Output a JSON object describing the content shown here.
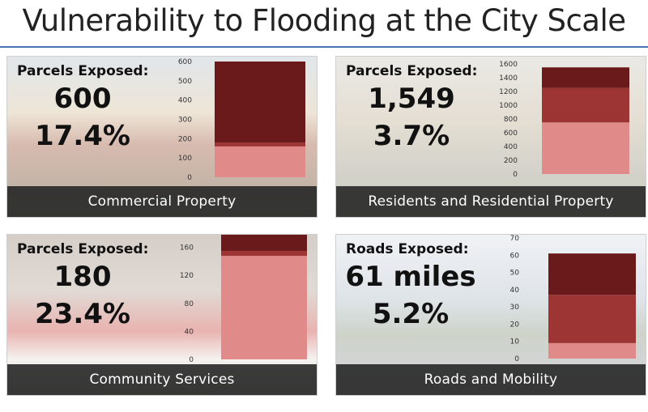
{
  "title": "Vulnerability to Flooding at the City Scale",
  "colors": {
    "dark": "#6a1a1a",
    "mid": "#9e3535",
    "light": "#e08a8a",
    "footer": "#222222",
    "rule": "#4a72b8"
  },
  "panels": [
    {
      "id": "commercial",
      "label": "Parcels Exposed:",
      "count": "600",
      "percent": "17.4%",
      "footer": "Commercial Property"
    },
    {
      "id": "residential",
      "label": "Parcels Exposed:",
      "count": "1,549",
      "percent": "3.7%",
      "footer": "Residents and Residential Property"
    },
    {
      "id": "services",
      "label": "Parcels Exposed:",
      "count": "180",
      "percent": "23.4%",
      "footer": "Community Services"
    },
    {
      "id": "roads",
      "label": "Roads Exposed:",
      "count": "61 miles",
      "percent": "5.2%",
      "footer": "Roads and Mobility"
    }
  ],
  "chart_data": [
    {
      "type": "bar",
      "stacked": true,
      "title": "",
      "ylim": [
        0,
        600
      ],
      "yticks": [
        0,
        100,
        200,
        300,
        400,
        500,
        600
      ],
      "series": [
        {
          "values": [
            160
          ],
          "color": "light"
        },
        {
          "values": [
            20
          ],
          "color": "mid"
        },
        {
          "values": [
            420
          ],
          "color": "dark"
        }
      ]
    },
    {
      "type": "bar",
      "stacked": true,
      "title": "",
      "ylim": [
        0,
        1600
      ],
      "yticks": [
        0,
        200,
        400,
        600,
        800,
        1000,
        1200,
        1400,
        1600
      ],
      "series": [
        {
          "values": [
            750
          ],
          "color": "light"
        },
        {
          "values": [
            500
          ],
          "color": "mid"
        },
        {
          "values": [
            300
          ],
          "color": "dark"
        }
      ]
    },
    {
      "type": "bar",
      "stacked": true,
      "title": "",
      "ylim": [
        0,
        170
      ],
      "yticks": [
        0,
        40,
        80,
        120,
        160
      ],
      "series": [
        {
          "values": [
            148
          ],
          "color": "light"
        },
        {
          "values": [
            7
          ],
          "color": "mid"
        },
        {
          "values": [
            25
          ],
          "color": "dark"
        }
      ]
    },
    {
      "type": "bar",
      "stacked": true,
      "title": "",
      "ylim": [
        0,
        70
      ],
      "yticks": [
        0,
        10,
        20,
        30,
        40,
        50,
        60,
        70
      ],
      "series": [
        {
          "values": [
            9
          ],
          "color": "light"
        },
        {
          "values": [
            28
          ],
          "color": "mid"
        },
        {
          "values": [
            24
          ],
          "color": "dark"
        }
      ]
    }
  ]
}
